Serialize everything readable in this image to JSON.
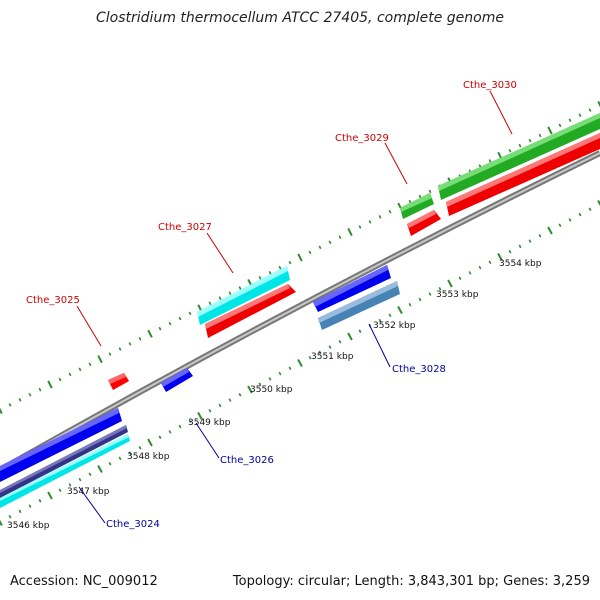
{
  "title": "Clostridium thermocellum ATCC 27405, complete genome",
  "accession": "Accession: NC_009012",
  "summary": "Topology: circular; Length: 3,843,301 bp; Genes: 3,259",
  "colors": {
    "backbone": "#888888",
    "tick": "#2e8b2e",
    "forward_label": "#cc0000",
    "reverse_label": "#000099"
  },
  "scale_labels": [
    "3546 kbp",
    "3547 kbp",
    "3548 kbp",
    "3549 kbp",
    "3550 kbp",
    "3551 kbp",
    "3552 kbp",
    "3553 kbp",
    "3554 kbp"
  ],
  "genes": [
    {
      "id": "Cthe_3025",
      "label": "Cthe_3025",
      "strand": "forward"
    },
    {
      "id": "Cthe_3027",
      "label": "Cthe_3027",
      "strand": "forward"
    },
    {
      "id": "Cthe_3029",
      "label": "Cthe_3029",
      "strand": "forward"
    },
    {
      "id": "Cthe_3030",
      "label": "Cthe_3030",
      "strand": "forward"
    },
    {
      "id": "Cthe_3024",
      "label": "Cthe_3024",
      "strand": "reverse"
    },
    {
      "id": "Cthe_3026",
      "label": "Cthe_3026",
      "strand": "reverse"
    },
    {
      "id": "Cthe_3028",
      "label": "Cthe_3028",
      "strand": "reverse"
    }
  ]
}
